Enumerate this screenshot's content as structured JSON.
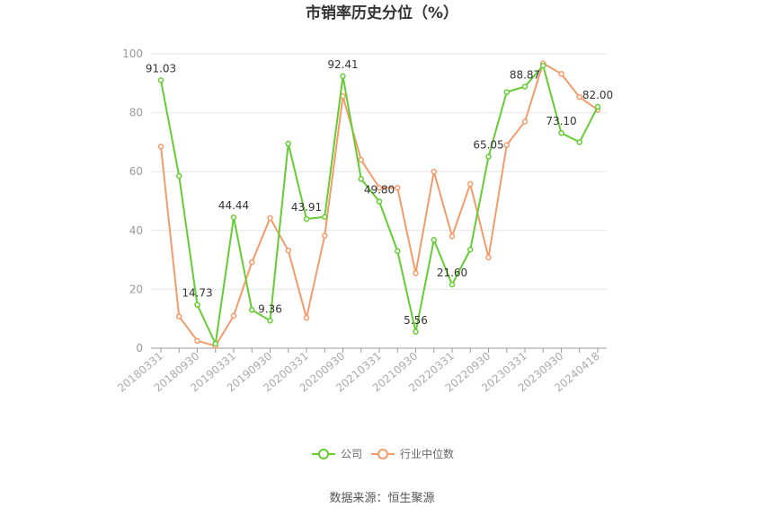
{
  "chart_data": {
    "type": "line",
    "title": "市销率历史分位（%）",
    "source": "数据来源：恒生聚源",
    "ylim": [
      0,
      100
    ],
    "yticks": [
      0,
      20,
      40,
      60,
      80,
      100
    ],
    "x_tick_labels": [
      "20180331",
      "20180930",
      "20190331",
      "20190930",
      "20200331",
      "20200930",
      "20210331",
      "20210930",
      "20220331",
      "20220930",
      "20230331",
      "20230930",
      "20240418"
    ],
    "series": [
      {
        "name": "公司",
        "color": "#66cc33",
        "values": [
          91.03,
          58.5,
          14.73,
          1.5,
          44.44,
          13.0,
          9.36,
          69.5,
          43.91,
          44.6,
          92.41,
          57.5,
          49.8,
          33.0,
          5.56,
          36.8,
          21.6,
          33.5,
          65.05,
          87.0,
          88.87,
          96.0,
          73.1,
          70.0,
          82.0
        ],
        "labels": {
          "0": "91.03",
          "2": "14.73",
          "4": "44.44",
          "6": "9.36",
          "8": "43.91",
          "10": "92.41",
          "12": "49.80",
          "14": "5.56",
          "16": "21.60",
          "18": "65.05",
          "20": "88.87",
          "22": "73.10",
          "24": "82.00"
        }
      },
      {
        "name": "行业中位数",
        "color": "#f59a6b",
        "values": [
          68.5,
          10.8,
          2.5,
          0.8,
          11.0,
          29.2,
          44.2,
          33.2,
          10.3,
          38.2,
          85.6,
          64.0,
          54.5,
          54.5,
          25.5,
          60.0,
          38.0,
          55.8,
          30.8,
          69.0,
          77.0,
          96.8,
          93.2,
          85.3,
          81.0
        ]
      }
    ],
    "grid": true,
    "legend_position": "bottom"
  }
}
